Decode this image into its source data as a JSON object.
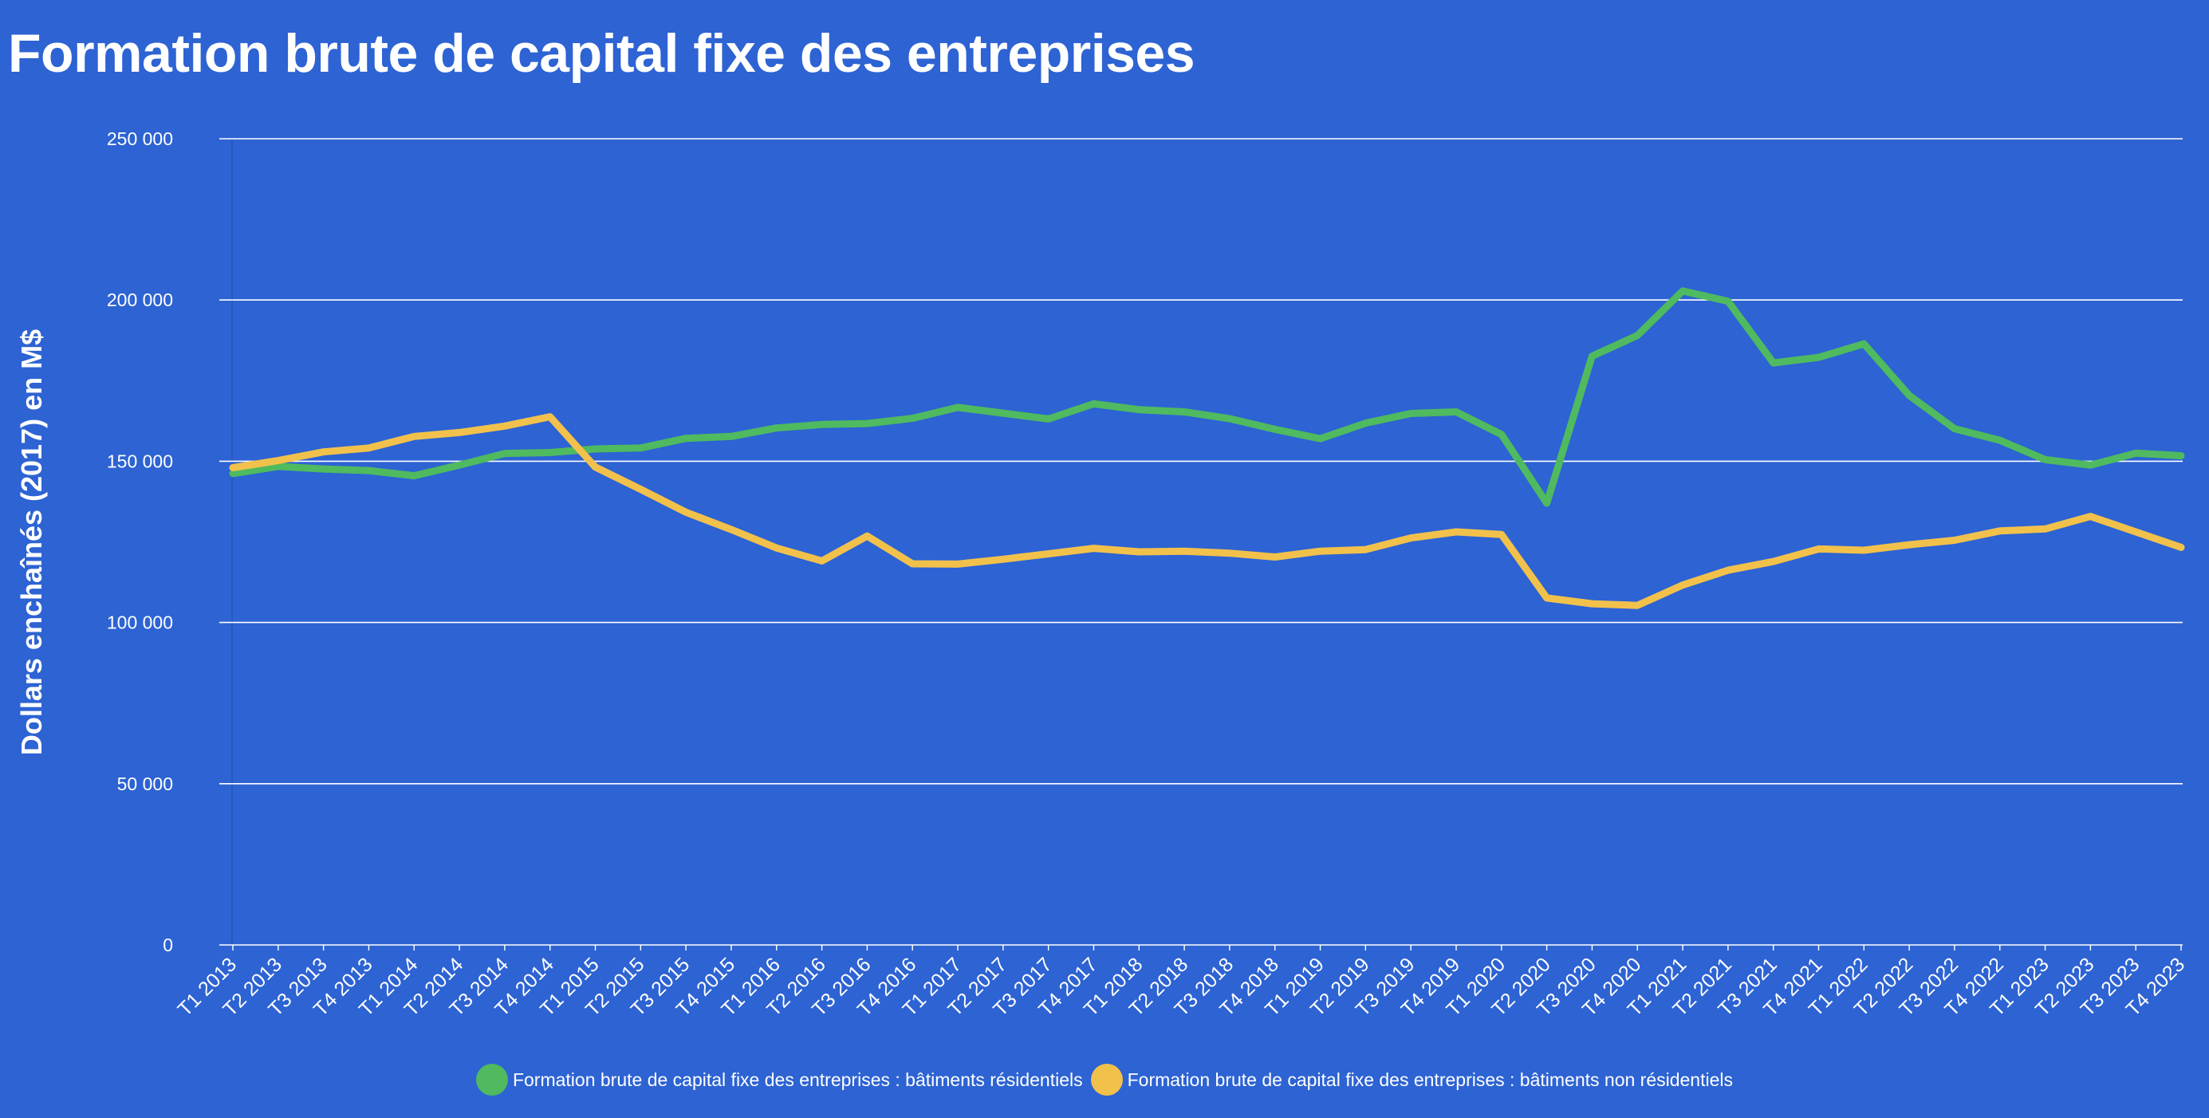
{
  "title": "Formation brute de capital fixe des entreprises",
  "chart_data": {
    "type": "line",
    "title": "Formation brute de capital fixe des entreprises",
    "xlabel": "",
    "ylabel": "Dollars enchaînés (2017) en M$",
    "ylim": [
      0,
      250000
    ],
    "yticks": [
      0,
      50000,
      100000,
      150000,
      200000,
      250000
    ],
    "ytick_labels": [
      "0",
      "50 000",
      "100 000",
      "150 000",
      "200 000",
      "250 000"
    ],
    "grid": true,
    "legend_position": "bottom",
    "categories": [
      "T1 2013",
      "T2 2013",
      "T3 2013",
      "T4 2013",
      "T1 2014",
      "T2 2014",
      "T3 2014",
      "T4 2014",
      "T1 2015",
      "T2 2015",
      "T3 2015",
      "T4 2015",
      "T1 2016",
      "T2 2016",
      "T3 2016",
      "T4 2016",
      "T1 2017",
      "T2 2017",
      "T3 2017",
      "T4 2017",
      "T1 2018",
      "T2 2018",
      "T3 2018",
      "T4 2018",
      "T1 2019",
      "T2 2019",
      "T3 2019",
      "T4 2019",
      "T1 2020",
      "T2 2020",
      "T3 2020",
      "T4 2020",
      "T1 2021",
      "T2 2021",
      "T3 2021",
      "T4 2021",
      "T1 2022",
      "T2 2022",
      "T3 2022",
      "T4 2022",
      "T1 2023",
      "T2 2023",
      "T3 2023",
      "T4 2023"
    ],
    "series": [
      {
        "name": "Formation brute de capital fixe des entreprises : bâtiments résidentiels",
        "color": "#4fba5f",
        "values": [
          146200,
          148400,
          147600,
          147100,
          145500,
          148800,
          152400,
          152700,
          153800,
          154100,
          157100,
          157700,
          160300,
          161400,
          161700,
          163300,
          166700,
          164900,
          163100,
          167800,
          166000,
          165300,
          163200,
          159900,
          157000,
          161800,
          164800,
          165300,
          158300,
          137000,
          182600,
          189000,
          202800,
          199600,
          180500,
          182200,
          186400,
          170400,
          160100,
          156500,
          150500,
          148800,
          152500,
          151700
        ]
      },
      {
        "name": "Formation brute de capital fixe des entreprises : bâtiments non résidentiels",
        "color": "#f2c14b",
        "values": [
          148000,
          150200,
          152900,
          154100,
          157700,
          158900,
          160900,
          163800,
          148200,
          141300,
          134200,
          128800,
          123100,
          119100,
          126800,
          118200,
          118100,
          119600,
          121300,
          123000,
          121900,
          122100,
          121500,
          120300,
          122100,
          122600,
          126200,
          128100,
          127300,
          107600,
          105800,
          105300,
          111600,
          116200,
          118900,
          122800,
          122400,
          124100,
          125500,
          128400,
          129000,
          132900,
          128100,
          123300
        ]
      }
    ]
  }
}
